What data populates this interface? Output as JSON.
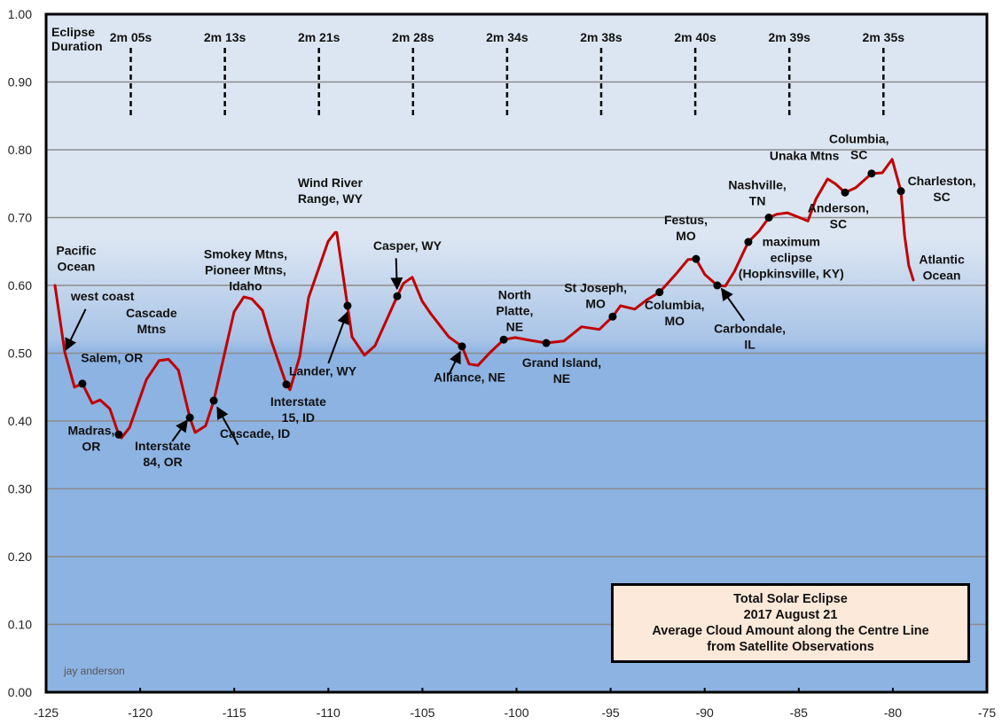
{
  "chart_data": {
    "type": "line",
    "title_lines": [
      "Total Solar Eclipse",
      "2017 August 21",
      "Average Cloud Amount along the Centre Line",
      "from Satellite Observations"
    ],
    "xlabel": "",
    "ylabel": "",
    "xlim": [
      -125,
      -75
    ],
    "ylim": [
      0.0,
      1.0
    ],
    "x_ticks": [
      -125,
      -120,
      -115,
      -110,
      -105,
      -100,
      -95,
      -90,
      -85,
      -80,
      -75
    ],
    "x_tick_labels": [
      "-125",
      "-120",
      "-115",
      "-110",
      "-105",
      "-100",
      "-95",
      "-90",
      "-85",
      "-80",
      "-75"
    ],
    "y_ticks": [
      0.0,
      0.1,
      0.2,
      0.3,
      0.4,
      0.5,
      0.6,
      0.7,
      0.8,
      0.9,
      1.0
    ],
    "y_tick_labels": [
      "0.00",
      "0.10",
      "0.20",
      "0.30",
      "0.40",
      "0.50",
      "0.60",
      "0.70",
      "0.80",
      "0.90",
      "1.00"
    ],
    "grid": "horizontal",
    "legend": "none",
    "series": [
      {
        "name": "Average Cloud Amount",
        "color": "#c00000",
        "x": [
          -124.53,
          -124.01,
          -123.49,
          -123.07,
          -122.55,
          -122.13,
          -121.61,
          -121.14,
          -121.0,
          -120.57,
          -119.67,
          -119.0,
          -118.49,
          -117.97,
          -117.36,
          -117.08,
          -116.52,
          -116.09,
          -115.01,
          -114.49,
          -114.06,
          -113.5,
          -113.03,
          -112.23,
          -112.04,
          -111.52,
          -111.05,
          -110.01,
          -109.64,
          -109.55,
          -108.98,
          -108.74,
          -108.08,
          -107.52,
          -106.34,
          -106.01,
          -105.54,
          -105.02,
          -104.55,
          -103.6,
          -102.9,
          -102.52,
          -102.05,
          -101.44,
          -100.68,
          -100.07,
          -99.27,
          -98.42,
          -97.48,
          -96.54,
          -95.6,
          -94.89,
          -94.47,
          -93.72,
          -93.06,
          -92.4,
          -91.55,
          -90.89,
          -90.46,
          -89.99,
          -89.33,
          -88.9,
          -88.43,
          -87.68,
          -87.11,
          -86.59,
          -86.17,
          -85.6,
          -85.13,
          -84.51,
          -84.09,
          -83.47,
          -83.06,
          -82.54,
          -81.97,
          -81.13,
          -80.56,
          -80.04,
          -79.57,
          -79.38,
          -79.15,
          -78.91
        ],
        "y": [
          0.6,
          0.502,
          0.45,
          0.455,
          0.426,
          0.431,
          0.418,
          0.38,
          0.375,
          0.39,
          0.461,
          0.489,
          0.491,
          0.475,
          0.405,
          0.383,
          0.393,
          0.43,
          0.561,
          0.583,
          0.58,
          0.563,
          0.518,
          0.454,
          0.446,
          0.495,
          0.582,
          0.665,
          0.678,
          0.678,
          0.57,
          0.524,
          0.497,
          0.511,
          0.584,
          0.603,
          0.612,
          0.577,
          0.558,
          0.524,
          0.51,
          0.484,
          0.482,
          0.5,
          0.52,
          0.523,
          0.519,
          0.515,
          0.518,
          0.539,
          0.535,
          0.554,
          0.57,
          0.565,
          0.579,
          0.59,
          0.616,
          0.638,
          0.639,
          0.616,
          0.6,
          0.599,
          0.62,
          0.664,
          0.68,
          0.7,
          0.705,
          0.707,
          0.702,
          0.695,
          0.727,
          0.757,
          0.75,
          0.737,
          0.744,
          0.765,
          0.766,
          0.786,
          0.739,
          0.674,
          0.629,
          0.608
        ]
      }
    ],
    "marked_points": [
      {
        "x": -123.07,
        "y": 0.455
      },
      {
        "x": -121.14,
        "y": 0.38
      },
      {
        "x": -117.36,
        "y": 0.405
      },
      {
        "x": -116.09,
        "y": 0.43
      },
      {
        "x": -112.23,
        "y": 0.454
      },
      {
        "x": -108.98,
        "y": 0.57
      },
      {
        "x": -106.34,
        "y": 0.584
      },
      {
        "x": -102.9,
        "y": 0.51
      },
      {
        "x": -100.68,
        "y": 0.52
      },
      {
        "x": -98.42,
        "y": 0.515
      },
      {
        "x": -94.89,
        "y": 0.554
      },
      {
        "x": -92.4,
        "y": 0.59
      },
      {
        "x": -90.46,
        "y": 0.639
      },
      {
        "x": -89.33,
        "y": 0.6
      },
      {
        "x": -87.68,
        "y": 0.664
      },
      {
        "x": -86.59,
        "y": 0.7
      },
      {
        "x": -82.54,
        "y": 0.737
      },
      {
        "x": -81.13,
        "y": 0.765
      },
      {
        "x": -79.57,
        "y": 0.739
      }
    ],
    "eclipse_duration": {
      "label_lines": [
        "Eclipse",
        "Duration"
      ],
      "markers": [
        {
          "x": -120.5,
          "label": "2m 05s"
        },
        {
          "x": -115.5,
          "label": "2m 13s"
        },
        {
          "x": -110.5,
          "label": "2m 21s"
        },
        {
          "x": -105.5,
          "label": "2m 28s"
        },
        {
          "x": -100.5,
          "label": "2m 34s"
        },
        {
          "x": -95.5,
          "label": "2m 38s"
        },
        {
          "x": -90.5,
          "label": "2m 40s"
        },
        {
          "x": -85.5,
          "label": "2m 39s"
        },
        {
          "x": -80.5,
          "label": "2m 35s"
        }
      ]
    },
    "annotations": [
      {
        "lines": [
          "Pacific",
          "Ocean"
        ],
        "x": -123.4,
        "y": 0.645,
        "anchor": "middle"
      },
      {
        "lines": [
          "west coast"
        ],
        "x": -122.0,
        "y": 0.578,
        "anchor": "middle",
        "arrow_from": [
          -122.9,
          0.565
        ],
        "arrow_to": [
          -123.95,
          0.505
        ]
      },
      {
        "lines": [
          "Salem, OR"
        ],
        "x": -121.5,
        "y": 0.487,
        "anchor": "middle"
      },
      {
        "lines": [
          "Cascade",
          "Mtns"
        ],
        "x": -119.4,
        "y": 0.553,
        "anchor": "middle"
      },
      {
        "lines": [
          "Madras,",
          "OR"
        ],
        "x": -122.6,
        "y": 0.38,
        "anchor": "middle"
      },
      {
        "lines": [
          "Interstate",
          "84, OR"
        ],
        "x": -118.8,
        "y": 0.357,
        "anchor": "middle",
        "arrow_from": [
          -118.3,
          0.37
        ],
        "arrow_to": [
          -117.5,
          0.401
        ]
      },
      {
        "lines": [
          "Cascade, ID"
        ],
        "x": -113.9,
        "y": 0.375,
        "anchor": "middle",
        "arrow_from": [
          -114.8,
          0.365
        ],
        "arrow_to": [
          -115.9,
          0.42
        ]
      },
      {
        "lines": [
          "Smokey Mtns,",
          "Pioneer Mtns,",
          "Idaho"
        ],
        "x": -114.4,
        "y": 0.64,
        "anchor": "middle"
      },
      {
        "lines": [
          "Interstate",
          "15, ID"
        ],
        "x": -111.6,
        "y": 0.422,
        "anchor": "middle"
      },
      {
        "lines": [
          "Wind River",
          "Range, WY"
        ],
        "x": -109.9,
        "y": 0.745,
        "anchor": "middle"
      },
      {
        "lines": [
          "Lander, WY"
        ],
        "x": -110.3,
        "y": 0.467,
        "anchor": "middle",
        "arrow_from": [
          -110.0,
          0.485
        ],
        "arrow_to": [
          -109.0,
          0.56
        ]
      },
      {
        "lines": [
          "Casper, WY"
        ],
        "x": -105.8,
        "y": 0.652,
        "anchor": "middle",
        "arrow_from": [
          -106.4,
          0.64
        ],
        "arrow_to": [
          -106.35,
          0.595
        ]
      },
      {
        "lines": [
          "North",
          "Platte,",
          "NE"
        ],
        "x": -100.1,
        "y": 0.58,
        "anchor": "middle"
      },
      {
        "lines": [
          "Alliance, NE"
        ],
        "x": -102.5,
        "y": 0.458,
        "anchor": "middle",
        "arrow_from": [
          -103.6,
          0.468
        ],
        "arrow_to": [
          -103.0,
          0.502
        ]
      },
      {
        "lines": [
          "Grand Island,",
          "NE"
        ],
        "x": -97.6,
        "y": 0.48,
        "anchor": "middle"
      },
      {
        "lines": [
          "St Joseph,",
          "MO"
        ],
        "x": -95.8,
        "y": 0.59,
        "anchor": "middle"
      },
      {
        "lines": [
          "Columbia,",
          "MO"
        ],
        "x": -91.6,
        "y": 0.565,
        "anchor": "middle"
      },
      {
        "lines": [
          "Festus,",
          "MO"
        ],
        "x": -91.0,
        "y": 0.69,
        "anchor": "middle"
      },
      {
        "lines": [
          "Carbondale,",
          "IL"
        ],
        "x": -87.6,
        "y": 0.53,
        "anchor": "middle",
        "arrow_from": [
          -87.9,
          0.548
        ],
        "arrow_to": [
          -89.1,
          0.595
        ]
      },
      {
        "lines": [
          "maximum",
          "eclipse",
          "(Hopkinsville, KY)"
        ],
        "x": -85.4,
        "y": 0.658,
        "anchor": "middle"
      },
      {
        "lines": [
          "Nashville,",
          "TN"
        ],
        "x": -87.2,
        "y": 0.742,
        "anchor": "middle"
      },
      {
        "lines": [
          "Unaka Mtns"
        ],
        "x": -84.7,
        "y": 0.785,
        "anchor": "middle"
      },
      {
        "lines": [
          "Anderson,",
          "SC"
        ],
        "x": -82.9,
        "y": 0.708,
        "anchor": "middle"
      },
      {
        "lines": [
          "Columbia,",
          "SC"
        ],
        "x": -81.8,
        "y": 0.81,
        "anchor": "middle"
      },
      {
        "lines": [
          "Charleston,",
          "SC"
        ],
        "x": -77.4,
        "y": 0.748,
        "anchor": "middle"
      },
      {
        "lines": [
          "Atlantic",
          "Ocean"
        ],
        "x": -77.4,
        "y": 0.632,
        "anchor": "middle"
      }
    ],
    "credit": "jay anderson",
    "colors": {
      "line": "#c00000",
      "bg_top": "#dce6f2",
      "bg_bottom": "#8db3e2",
      "title_box": "#fde9d9",
      "grid": "#8c8c8c"
    }
  }
}
